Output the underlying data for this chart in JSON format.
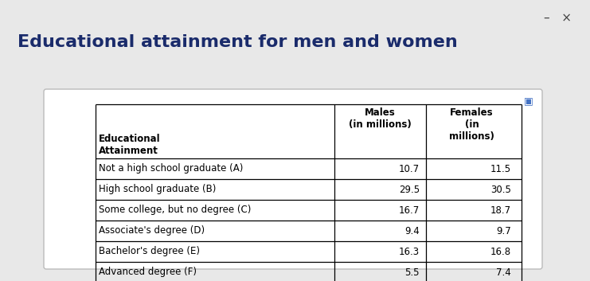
{
  "title": "Educational attainment for men and women",
  "title_color": "#1a2b6b",
  "title_fontsize": 16,
  "background_color": "#e8e8e8",
  "panel_color": "#ffffff",
  "panel_border_color": "#bbbbbb",
  "col_headers": [
    "Educational\nAttainment",
    "Males\n(in millions)",
    "Females\n(in\nmillions)"
  ],
  "rows": [
    [
      "Not a high school graduate (A)",
      "10.7",
      "11.5"
    ],
    [
      "High school graduate (B)",
      "29.5",
      "30.5"
    ],
    [
      "Some college, but no degree (C)",
      "16.7",
      "18.7"
    ],
    [
      "Associate's degree (D)",
      "9.4",
      "9.7"
    ],
    [
      "Bachelor's degree (E)",
      "16.3",
      "16.8"
    ],
    [
      "Advanced degree (F)",
      "5.5",
      "7.4"
    ]
  ],
  "table_edge_color": "#000000",
  "header_fontsize": 8.5,
  "cell_fontsize": 8.5,
  "icon_color": "#4472C4"
}
